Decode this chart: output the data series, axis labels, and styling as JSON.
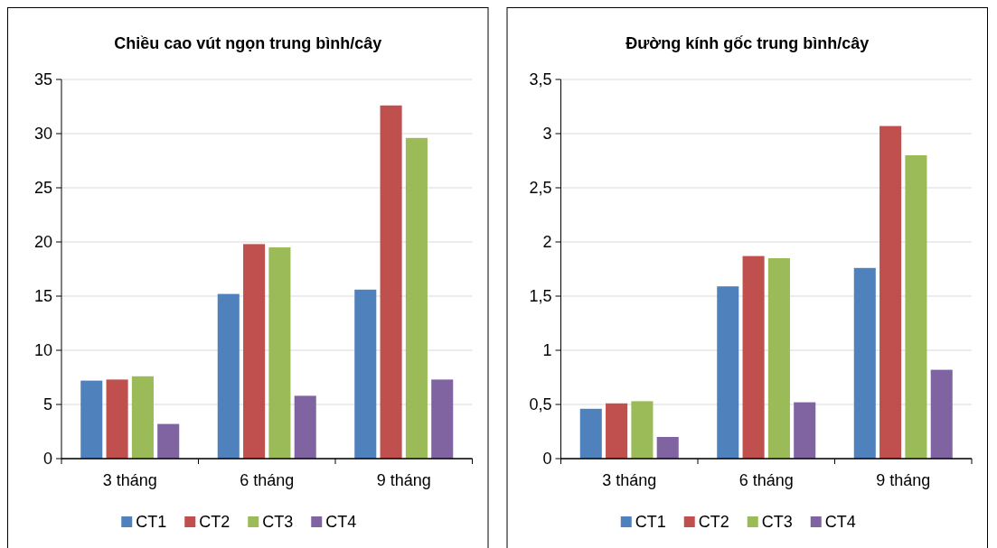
{
  "chart_data": [
    {
      "type": "bar",
      "title": "Chiều cao vút ngọn trung bình/cây",
      "categories": [
        "3 tháng",
        "6 tháng",
        "9 tháng"
      ],
      "series": [
        {
          "name": "CT1",
          "color": "#4f81bd",
          "values": [
            7.2,
            15.2,
            15.6
          ]
        },
        {
          "name": "CT2",
          "color": "#c0504d",
          "values": [
            7.3,
            19.8,
            32.6
          ]
        },
        {
          "name": "CT3",
          "color": "#9bbb59",
          "values": [
            7.6,
            19.5,
            29.6
          ]
        },
        {
          "name": "CT4",
          "color": "#8064a2",
          "values": [
            3.2,
            5.8,
            7.3
          ]
        }
      ],
      "ylim": [
        0,
        35
      ],
      "yticks": [
        0,
        5,
        10,
        15,
        20,
        25,
        30,
        35
      ],
      "grid": "y",
      "legend": "bottom"
    },
    {
      "type": "bar",
      "title": "Đường kính gốc trung bình/cây",
      "categories": [
        "3 tháng",
        "6 tháng",
        "9 tháng"
      ],
      "series": [
        {
          "name": "CT1",
          "color": "#4f81bd",
          "values": [
            0.46,
            1.59,
            1.76
          ]
        },
        {
          "name": "CT2",
          "color": "#c0504d",
          "values": [
            0.51,
            1.87,
            3.07
          ]
        },
        {
          "name": "CT3",
          "color": "#9bbb59",
          "values": [
            0.53,
            1.85,
            2.8
          ]
        },
        {
          "name": "CT4",
          "color": "#8064a2",
          "values": [
            0.2,
            0.52,
            0.82
          ]
        }
      ],
      "ylim": [
        0,
        3.5
      ],
      "yticks": [
        0,
        {
          "value": 0.5,
          "label": "0,5"
        },
        1,
        {
          "value": 1.5,
          "label": "1,5"
        },
        2,
        {
          "value": 2.5,
          "label": "2,5"
        },
        3,
        {
          "value": 3.5,
          "label": "3,5"
        }
      ],
      "grid": "y",
      "legend": "bottom"
    }
  ]
}
